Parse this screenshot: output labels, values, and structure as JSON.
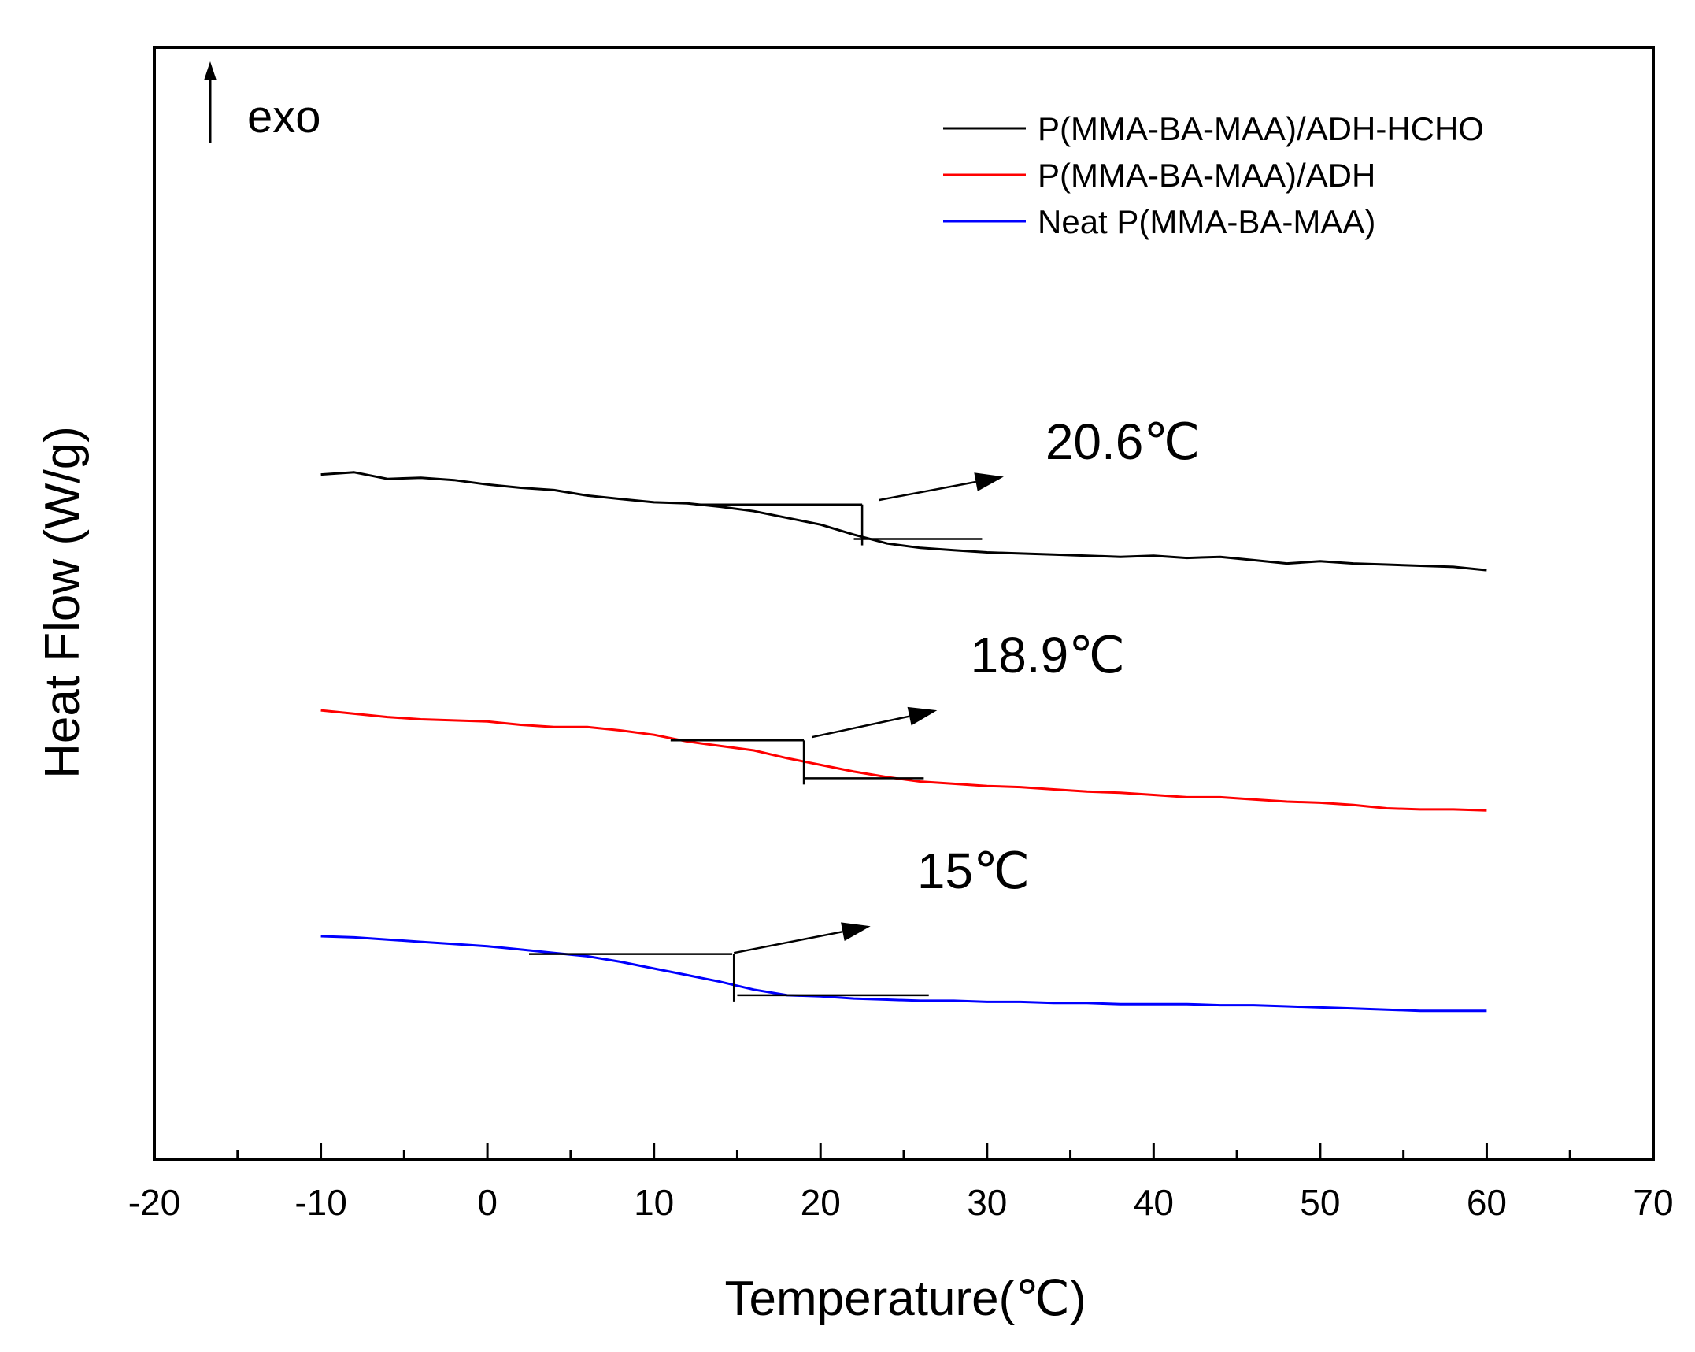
{
  "chart_data": {
    "type": "line",
    "title": "",
    "xlabel": "Temperature(℃)",
    "ylabel": "Heat Flow (W/g)",
    "xlim": [
      -20,
      70
    ],
    "ylim": [
      0,
      100
    ],
    "x_ticks": [
      -20,
      -10,
      0,
      10,
      20,
      30,
      40,
      50,
      60,
      70
    ],
    "x_tick_labels": [
      "-20",
      "-10",
      "0",
      "10",
      "20",
      "30",
      "40",
      "50",
      "60",
      "70"
    ],
    "x_minor_ticks": [
      -15,
      -5,
      5,
      15,
      25,
      35,
      45,
      55,
      65
    ],
    "y_ticks_shown": false,
    "grid": false,
    "legend_position": "top-right",
    "exo_label": "exo",
    "series": [
      {
        "name": "P(MMA-BA-MAA)/ADH-HCHO",
        "color": "#000000",
        "x": [
          -10,
          -8,
          -6,
          -4,
          -2,
          0,
          2,
          4,
          6,
          8,
          10,
          12,
          14,
          16,
          18,
          20,
          22,
          24,
          26,
          28,
          30,
          32,
          34,
          36,
          38,
          40,
          42,
          44,
          46,
          48,
          50,
          52,
          54,
          56,
          58,
          60
        ],
        "y": [
          61.6,
          61.8,
          61.2,
          61.3,
          61.1,
          60.7,
          60.4,
          60.2,
          59.7,
          59.4,
          59.1,
          59.0,
          58.7,
          58.3,
          57.7,
          57.1,
          56.2,
          55.4,
          55.0,
          54.8,
          54.6,
          54.5,
          54.4,
          54.3,
          54.2,
          54.3,
          54.1,
          54.2,
          53.9,
          53.6,
          53.8,
          53.6,
          53.5,
          53.4,
          53.3,
          53.0
        ]
      },
      {
        "name": "P(MMA-BA-MAA)/ADH",
        "color": "#ff0000",
        "x": [
          -10,
          -8,
          -6,
          -4,
          -2,
          0,
          2,
          4,
          6,
          8,
          10,
          12,
          14,
          16,
          18,
          20,
          22,
          24,
          26,
          28,
          30,
          32,
          34,
          36,
          38,
          40,
          42,
          44,
          46,
          48,
          50,
          52,
          54,
          56,
          58,
          60
        ],
        "y": [
          40.4,
          40.1,
          39.8,
          39.6,
          39.5,
          39.4,
          39.1,
          38.9,
          38.9,
          38.6,
          38.2,
          37.6,
          37.2,
          36.8,
          36.1,
          35.5,
          34.9,
          34.4,
          34.0,
          33.8,
          33.6,
          33.5,
          33.3,
          33.1,
          33.0,
          32.8,
          32.6,
          32.6,
          32.4,
          32.2,
          32.1,
          31.9,
          31.6,
          31.5,
          31.5,
          31.4
        ]
      },
      {
        "name": "Neat P(MMA-BA-MAA)",
        "color": "#0000ff",
        "x": [
          -10,
          -8,
          -6,
          -4,
          -2,
          0,
          2,
          4,
          6,
          8,
          10,
          12,
          14,
          16,
          18,
          20,
          22,
          24,
          26,
          28,
          30,
          32,
          34,
          36,
          38,
          40,
          42,
          44,
          46,
          48,
          50,
          52,
          54,
          56,
          58,
          60
        ],
        "y": [
          20.1,
          20.0,
          19.8,
          19.6,
          19.4,
          19.2,
          18.9,
          18.6,
          18.3,
          17.8,
          17.2,
          16.6,
          16.0,
          15.3,
          14.8,
          14.7,
          14.5,
          14.4,
          14.3,
          14.3,
          14.2,
          14.2,
          14.1,
          14.1,
          14.0,
          14.0,
          14.0,
          13.9,
          13.9,
          13.8,
          13.7,
          13.6,
          13.5,
          13.4,
          13.4,
          13.4
        ]
      }
    ],
    "annotations": [
      {
        "label": "20.6℃",
        "series": "P(MMA-BA-MAA)/ADH-HCHO",
        "tg": 20.6,
        "onset_line": {
          "x": [
            12.5,
            22.5
          ],
          "y": 58.9
        },
        "end_line": {
          "x": [
            22,
            29.7
          ],
          "y": 55.8
        },
        "step_x": 22.5,
        "arrow": {
          "from": [
            23.5,
            59.3
          ],
          "to": [
            31,
            61.4
          ]
        },
        "text_at": [
          33.5,
          63.0
        ]
      },
      {
        "label": "18.9℃",
        "series": "P(MMA-BA-MAA)/ADH",
        "tg": 18.9,
        "onset_line": {
          "x": [
            11,
            19
          ],
          "y": 37.7
        },
        "end_line": {
          "x": [
            19,
            26.2
          ],
          "y": 34.3
        },
        "step_x": 19.0,
        "arrow": {
          "from": [
            19.5,
            38.0
          ],
          "to": [
            27,
            40.4
          ]
        },
        "text_at": [
          29,
          43.8
        ]
      },
      {
        "label": "15℃",
        "series": "Neat P(MMA-BA-MAA)",
        "tg": 15.0,
        "onset_line": {
          "x": [
            2.5,
            14.7
          ],
          "y": 18.5
        },
        "end_line": {
          "x": [
            15,
            26.5
          ],
          "y": 14.8
        },
        "step_x": 14.8,
        "arrow": {
          "from": [
            14.8,
            18.6
          ],
          "to": [
            23,
            21.0
          ]
        },
        "text_at": [
          25.8,
          24.4
        ]
      }
    ]
  }
}
